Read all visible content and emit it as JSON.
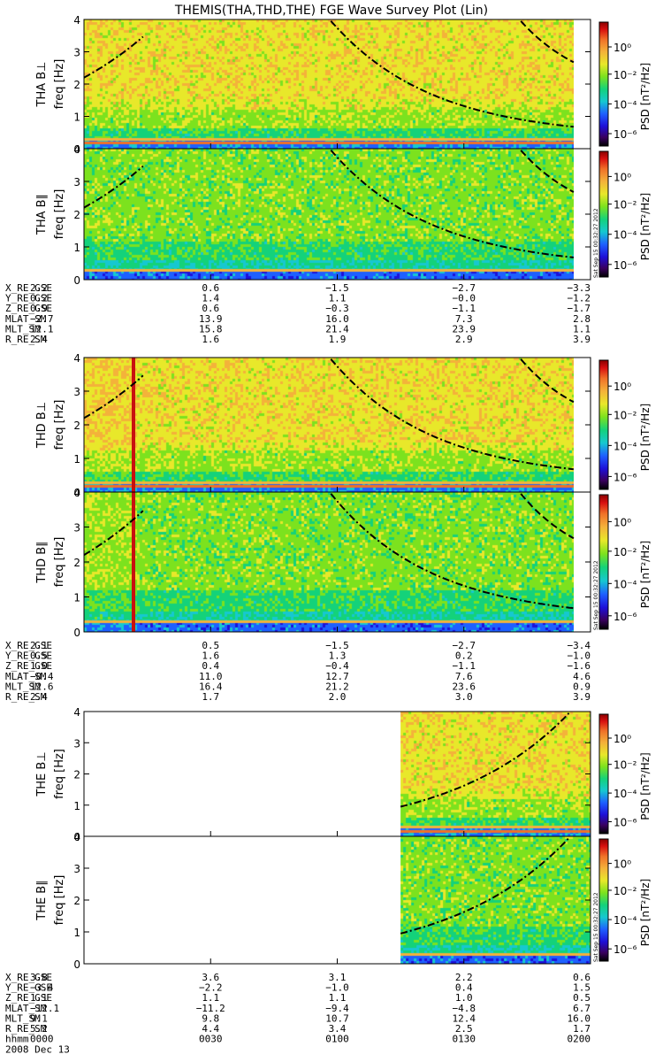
{
  "title": "THEMIS(THA,THD,THE) FGE Wave Survey Plot (Lin)",
  "colors": {
    "colormap": [
      "#000000",
      "#3a0060",
      "#1e10d8",
      "#1e60ff",
      "#16c8d0",
      "#14d27a",
      "#7ce21e",
      "#e8e82a",
      "#f4b23a",
      "#f07028",
      "#d81010",
      "#8a0000"
    ]
  },
  "time_axis": {
    "label": "hhmm",
    "date": "2008 Dec 13",
    "ticks": [
      "0000",
      "0030",
      "0100",
      "0130",
      "0200"
    ]
  },
  "colorbar": {
    "label": "PSD [nT²/Hz]",
    "ticks": [
      "10⁰",
      "10⁻²",
      "10⁻⁴",
      "10⁻⁶"
    ],
    "stamp": "Sat Sep 15 00:32:27 2012"
  },
  "chart_data": [
    {
      "type": "heatmap",
      "panel": "THA B⊥",
      "ylabel": "freq [Hz]",
      "ylim": [
        0,
        4
      ],
      "yticks": [
        "0",
        "1",
        "2",
        "3",
        "4"
      ],
      "xlim": [
        "0000",
        "0200"
      ],
      "data_extent": [
        "0000",
        "0156"
      ],
      "zscale": "log",
      "zlim": [
        "1e-6",
        "1e1"
      ]
    },
    {
      "type": "heatmap",
      "panel": "THA B∥",
      "ylabel": "freq [Hz]",
      "ylim": [
        0,
        4
      ],
      "yticks": [
        "0",
        "1",
        "2",
        "3",
        "4"
      ],
      "xlim": [
        "0000",
        "0200"
      ],
      "data_extent": [
        "0000",
        "0156"
      ],
      "zscale": "log",
      "zlim": [
        "1e-6",
        "1e1"
      ]
    },
    {
      "type": "heatmap",
      "panel": "THD B⊥",
      "ylabel": "freq [Hz]",
      "ylim": [
        0,
        4
      ],
      "yticks": [
        "0",
        "1",
        "2",
        "3",
        "4"
      ],
      "xlim": [
        "0000",
        "0200"
      ],
      "data_extent": [
        "0000",
        "0156"
      ],
      "zscale": "log",
      "zlim": [
        "1e-6",
        "1e1"
      ]
    },
    {
      "type": "heatmap",
      "panel": "THD B∥",
      "ylabel": "freq [Hz]",
      "ylim": [
        0,
        4
      ],
      "yticks": [
        "0",
        "1",
        "2",
        "3",
        "4"
      ],
      "xlim": [
        "0000",
        "0200"
      ],
      "data_extent": [
        "0000",
        "0156"
      ],
      "zscale": "log",
      "zlim": [
        "1e-6",
        "1e1"
      ]
    },
    {
      "type": "heatmap",
      "panel": "THE B⊥",
      "ylabel": "freq [Hz]",
      "ylim": [
        0,
        4
      ],
      "yticks": [
        "0",
        "1",
        "2",
        "3",
        "4"
      ],
      "xlim": [
        "0000",
        "0200"
      ],
      "data_extent": [
        "0115",
        "0200"
      ],
      "zscale": "log",
      "zlim": [
        "1e-6",
        "1e1"
      ]
    },
    {
      "type": "heatmap",
      "panel": "THE B∥",
      "ylabel": "freq [Hz]",
      "ylim": [
        0,
        4
      ],
      "yticks": [
        "0",
        "1",
        "2",
        "3",
        "4"
      ],
      "xlim": [
        "0000",
        "0200"
      ],
      "data_extent": [
        "0115",
        "0200"
      ],
      "zscale": "log",
      "zlim": [
        "1e-6",
        "1e1"
      ]
    }
  ],
  "ephemeris": [
    {
      "probe": "THA",
      "rows": [
        {
          "label": "X_RE_GSE",
          "values": [
            "2.2",
            "0.6",
            "−1.5",
            "−2.7",
            "−3.3"
          ]
        },
        {
          "label": "Y_RE_GSE",
          "values": [
            "0.2",
            "1.4",
            "1.1",
            "−0.0",
            "−1.2"
          ]
        },
        {
          "label": "Z_RE_GSE",
          "values": [
            "0.9",
            "0.6",
            "−0.3",
            "−1.1",
            "−1.7"
          ]
        },
        {
          "label": "MLAT_SM",
          "values": [
            "−2.7",
            "13.9",
            "16.0",
            "7.3",
            "2.8"
          ]
        },
        {
          "label": "MLT_SM",
          "values": [
            "12.1",
            "15.8",
            "21.4",
            "23.9",
            "1.1"
          ]
        },
        {
          "label": "R_RE_SM",
          "values": [
            "2.4",
            "1.6",
            "1.9",
            "2.9",
            "3.9"
          ]
        }
      ]
    },
    {
      "probe": "THD",
      "rows": [
        {
          "label": "X_RE_GSE",
          "values": [
            "2.1",
            "0.5",
            "−1.5",
            "−2.7",
            "−3.4"
          ]
        },
        {
          "label": "Y_RE_GSE",
          "values": [
            "0.5",
            "1.6",
            "1.3",
            "0.2",
            "−1.0"
          ]
        },
        {
          "label": "Z_RE_GSE",
          "values": [
            "1.0",
            "0.4",
            "−0.4",
            "−1.1",
            "−1.6"
          ]
        },
        {
          "label": "MLAT_SM",
          "values": [
            "−0.4",
            "11.0",
            "12.7",
            "7.6",
            "4.6"
          ]
        },
        {
          "label": "MLT_SM",
          "values": [
            "12.6",
            "16.4",
            "21.2",
            "23.6",
            "0.9"
          ]
        },
        {
          "label": "R_RE_SM",
          "values": [
            "2.4",
            "1.7",
            "2.0",
            "3.0",
            "3.9"
          ]
        }
      ]
    },
    {
      "probe": "THE",
      "rows": [
        {
          "label": "X_RE_GSE",
          "values": [
            "3.8",
            "3.6",
            "3.1",
            "2.2",
            "0.6"
          ]
        },
        {
          "label": "Y_RE_GSE",
          "values": [
            "−3.4",
            "−2.2",
            "−1.0",
            "0.4",
            "1.5"
          ]
        },
        {
          "label": "Z_RE_GSE",
          "values": [
            "1.1",
            "1.1",
            "1.1",
            "1.0",
            "0.5"
          ]
        },
        {
          "label": "MLAT_SM",
          "values": [
            "−12.1",
            "−11.2",
            "−9.4",
            "−4.8",
            "6.7"
          ]
        },
        {
          "label": "MLT_SM",
          "values": [
            "9.1",
            "9.8",
            "10.7",
            "12.4",
            "16.0"
          ]
        },
        {
          "label": "R_RE_SM",
          "values": [
            "5.2",
            "4.4",
            "3.4",
            "2.5",
            "1.7"
          ]
        }
      ]
    }
  ]
}
